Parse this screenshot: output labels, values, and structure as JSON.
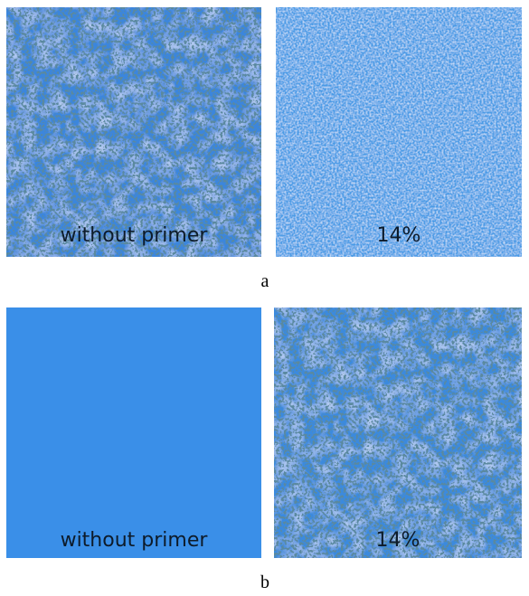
{
  "figures": [
    {
      "caption": "a",
      "panels": [
        {
          "label": "without primer"
        },
        {
          "label": "14%"
        }
      ]
    },
    {
      "caption": "b",
      "panels": [
        {
          "label": "without primer"
        },
        {
          "label": "14%"
        }
      ]
    }
  ]
}
